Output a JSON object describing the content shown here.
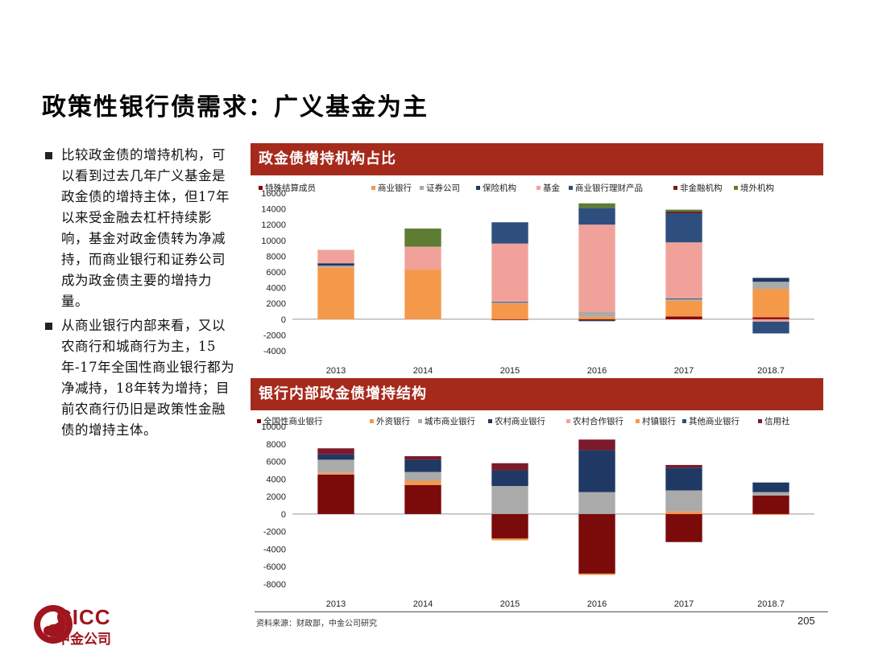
{
  "page": {
    "title": "政策性银行债需求：广义基金为主",
    "bullets": [
      "比较政金债的增持机构，可以看到过去几年广义基金是政金债的增持主体，但17年以来受金融去杠杆持续影响，基金对政金债转为净减持，而商业银行和证券公司成为政金债主要的增持力量。",
      "从商业银行内部来看，又以农商行和城商行为主，15年-17年全国性商业银行都为净减持，18年转为增持；目前农商行仍旧是政策性金融债的增持主体。"
    ],
    "source": "资料来源：财政部，中金公司研究",
    "page_number": "205",
    "logo": {
      "en": "CICC",
      "cn": "中金公司"
    }
  },
  "chart_data": [
    {
      "type": "bar",
      "stacked": true,
      "title": "政金债增持机构占比",
      "categories": [
        "2013",
        "2014",
        "2015",
        "2016",
        "2017",
        "2018.7"
      ],
      "ylim": [
        -4000,
        16000
      ],
      "yticks": [
        16000,
        14000,
        12000,
        10000,
        8000,
        6000,
        4000,
        2000,
        0,
        -2000,
        -4000
      ],
      "legend_position": "top",
      "series": [
        {
          "name": "特殊结算成员",
          "color": "#8b0000",
          "values": [
            0,
            0,
            -100,
            -150,
            350,
            250
          ]
        },
        {
          "name": "商业银行",
          "color": "#f4994a",
          "values": [
            6600,
            6300,
            2000,
            300,
            2000,
            3600
          ]
        },
        {
          "name": "证券公司",
          "color": "#aaaaaa",
          "values": [
            200,
            0,
            100,
            600,
            200,
            900
          ]
        },
        {
          "name": "保险机构",
          "color": "#1f3864",
          "values": [
            300,
            0,
            100,
            -100,
            100,
            500
          ]
        },
        {
          "name": "基金",
          "color": "#f0a29a",
          "values": [
            1700,
            2900,
            7400,
            11100,
            7100,
            -300
          ]
        },
        {
          "name": "商业银行理财产品",
          "color": "#2e4e7e",
          "values": [
            0,
            0,
            2700,
            2100,
            3700,
            -1500
          ]
        },
        {
          "name": "非金融机构",
          "color": "#7a1a1a",
          "values": [
            0,
            0,
            0,
            0,
            200,
            0
          ]
        },
        {
          "name": "境外机构",
          "color": "#5e7c34",
          "values": [
            0,
            2300,
            0,
            600,
            250,
            0
          ]
        }
      ]
    },
    {
      "type": "bar",
      "stacked": true,
      "title": "银行内部政金债增持结构",
      "categories": [
        "2013",
        "2014",
        "2015",
        "2016",
        "2017",
        "2018.7"
      ],
      "ylim": [
        -8000,
        10000
      ],
      "yticks": [
        10000,
        8000,
        6000,
        4000,
        2000,
        0,
        -2000,
        -4000,
        -6000,
        -8000
      ],
      "legend_position": "top",
      "series": [
        {
          "name": "全国性商业银行",
          "color": "#7b0a0a",
          "values": [
            4500,
            3300,
            -2800,
            -6800,
            -3200,
            2100
          ]
        },
        {
          "name": "外资银行",
          "color": "#f4994a",
          "values": [
            200,
            500,
            -200,
            -150,
            300,
            -100
          ]
        },
        {
          "name": "城市商业银行",
          "color": "#aaaaaa",
          "values": [
            1500,
            1000,
            3200,
            2500,
            2400,
            400
          ]
        },
        {
          "name": "农村商业银行",
          "color": "#1f3864",
          "values": [
            600,
            1400,
            1800,
            4800,
            2600,
            1100
          ]
        },
        {
          "name": "农村合作银行",
          "color": "#f0a29a",
          "values": [
            0,
            0,
            0,
            0,
            0,
            0
          ]
        },
        {
          "name": "村镇银行",
          "color": "#f4994a",
          "values": [
            0,
            0,
            0,
            0,
            0,
            0
          ]
        },
        {
          "name": "其他商业银行",
          "color": "#2e4e7e",
          "values": [
            0,
            0,
            0,
            0,
            0,
            0
          ]
        },
        {
          "name": "信用社",
          "color": "#7a1a2a",
          "values": [
            700,
            400,
            800,
            1200,
            300,
            0
          ]
        }
      ]
    }
  ]
}
